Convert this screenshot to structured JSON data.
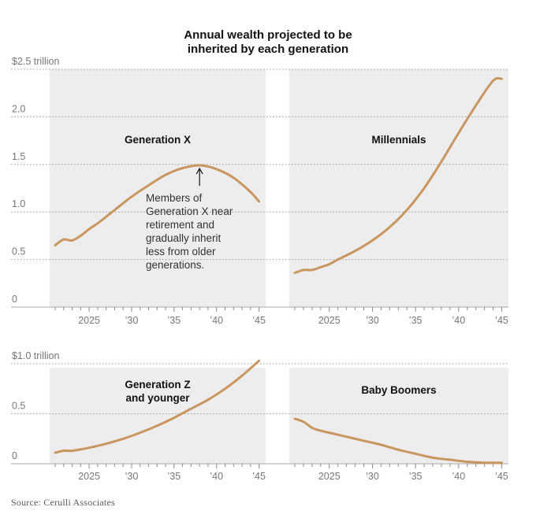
{
  "title": {
    "line1": "Annual wealth projected to be",
    "line2": "inherited by each generation"
  },
  "source": "Source: Cerulli Associates",
  "colors": {
    "line": "#c99660",
    "panel": "#ededed",
    "grid": "#999999",
    "text": "#121212"
  },
  "x_ticks": [
    "2025",
    "’30",
    "’35",
    "’40",
    "’45"
  ],
  "chart_data": [
    {
      "type": "line",
      "row": "top",
      "ylim": [
        0,
        2.5
      ],
      "y_ticks": [
        "0",
        "0.5",
        "1.0",
        "1.5",
        "2.0",
        "$2.5 trillion"
      ],
      "panels": [
        {
          "name": "Generation X",
          "x": [
            2021,
            2022,
            2023,
            2024,
            2025,
            2026,
            2028,
            2030,
            2032,
            2034,
            2036,
            2038,
            2040,
            2042,
            2044,
            2045
          ],
          "values": [
            0.65,
            0.71,
            0.7,
            0.75,
            0.82,
            0.88,
            1.02,
            1.16,
            1.28,
            1.39,
            1.46,
            1.49,
            1.45,
            1.36,
            1.21,
            1.11
          ],
          "annotation": {
            "x": 2038,
            "y": 1.49,
            "lines": [
              "Members of",
              "Generation X near",
              "retirement and",
              "gradually inherit",
              "less from older",
              "generations."
            ]
          }
        },
        {
          "name": "Millennials",
          "x": [
            2021,
            2022,
            2023,
            2024,
            2025,
            2026,
            2028,
            2030,
            2032,
            2034,
            2036,
            2038,
            2040,
            2042,
            2044,
            2045
          ],
          "values": [
            0.36,
            0.39,
            0.39,
            0.42,
            0.45,
            0.5,
            0.59,
            0.7,
            0.84,
            1.02,
            1.25,
            1.53,
            1.83,
            2.12,
            2.38,
            2.4
          ]
        }
      ]
    },
    {
      "type": "line",
      "row": "bottom",
      "ylim": [
        0,
        1.0
      ],
      "y_ticks": [
        "0",
        "0.5",
        "$1.0 trillion"
      ],
      "panels": [
        {
          "name": "Generation Z",
          "name_line2": "and younger",
          "x": [
            2021,
            2022,
            2023,
            2025,
            2027,
            2029,
            2031,
            2033,
            2035,
            2037,
            2039,
            2041,
            2043,
            2045
          ],
          "values": [
            0.11,
            0.13,
            0.13,
            0.16,
            0.2,
            0.25,
            0.31,
            0.38,
            0.46,
            0.55,
            0.64,
            0.75,
            0.88,
            1.03
          ]
        },
        {
          "name": "Baby Boomers",
          "x": [
            2021,
            2022,
            2023,
            2024,
            2025,
            2027,
            2029,
            2031,
            2033,
            2035,
            2037,
            2039,
            2041,
            2043,
            2045
          ],
          "values": [
            0.45,
            0.42,
            0.36,
            0.33,
            0.31,
            0.27,
            0.23,
            0.19,
            0.14,
            0.1,
            0.06,
            0.04,
            0.02,
            0.01,
            0.01
          ]
        }
      ]
    }
  ]
}
